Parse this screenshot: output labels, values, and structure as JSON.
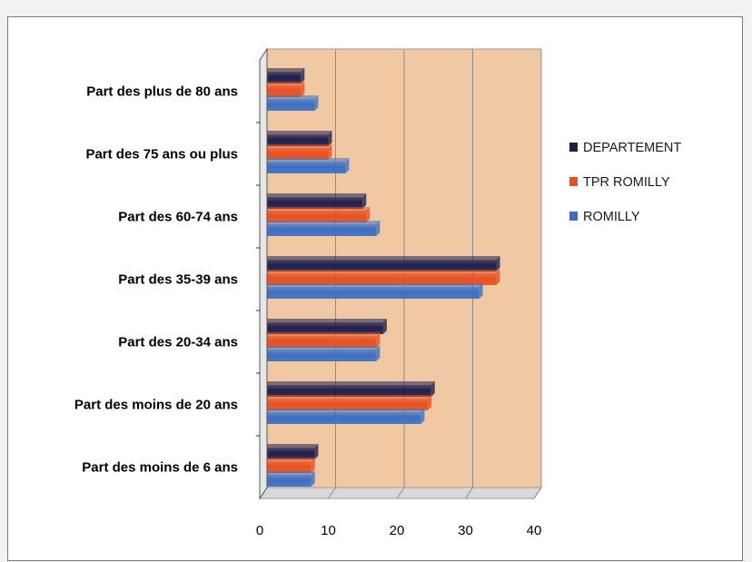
{
  "chart_data": {
    "type": "bar",
    "orientation": "horizontal",
    "categories": [
      "Part des plus de 80 ans",
      "Part des 75 ans ou plus",
      "Part des 60-74 ans",
      "Part des 35-39 ans",
      "Part des 20-34 ans",
      "Part des moins de 20 ans",
      "Part des moins de 6 ans"
    ],
    "series": [
      {
        "name": "DEPARTEMENT",
        "color": "#1f1f4e",
        "values": [
          6,
          10,
          15,
          34.5,
          18,
          25,
          8
        ]
      },
      {
        "name": "TPR ROMILLY",
        "color": "#e8501f",
        "values": [
          6,
          10,
          15.5,
          34.5,
          17,
          24.5,
          7.5
        ]
      },
      {
        "name": "ROMILLY",
        "color": "#3b6fc4",
        "values": [
          8,
          12.5,
          17,
          32,
          17,
          23.5,
          7.5
        ]
      }
    ],
    "xticks": [
      "0",
      "10",
      "20",
      "30",
      "40"
    ],
    "xlim": [
      0,
      40
    ],
    "title": "",
    "xlabel": "",
    "ylabel": "",
    "grid": true,
    "legend": "right",
    "plot_background": "#f0c9a4"
  }
}
